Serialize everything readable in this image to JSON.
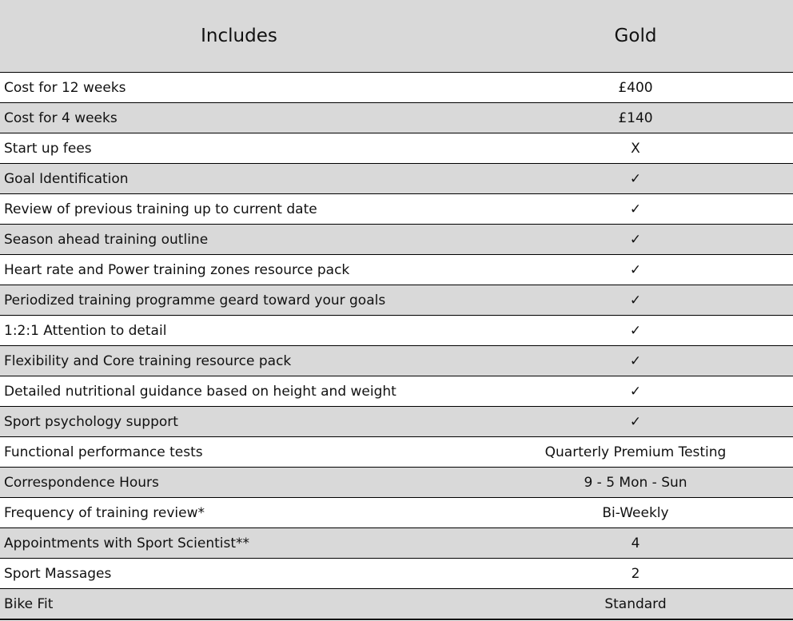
{
  "header": {
    "col1": "Includes",
    "col2": "Gold"
  },
  "rows": [
    {
      "label": "Cost for 12 weeks",
      "value": "£400"
    },
    {
      "label": "Cost for 4 weeks",
      "value": "£140"
    },
    {
      "label": "Start up fees",
      "value": "X"
    },
    {
      "label": "Goal Identification",
      "value": "✓"
    },
    {
      "label": "Review of previous training up to current date",
      "value": "✓"
    },
    {
      "label": "Season ahead training outline",
      "value": "✓"
    },
    {
      "label": "Heart rate and Power training zones resource pack",
      "value": "✓"
    },
    {
      "label": "Periodized training programme geard toward your goals",
      "value": "✓"
    },
    {
      "label": "1:2:1 Attention to detail",
      "value": "✓"
    },
    {
      "label": "Flexibility and Core training resource pack",
      "value": "✓"
    },
    {
      "label": "Detailed nutritional guidance based on height and weight",
      "value": "✓"
    },
    {
      "label": "Sport psychology support",
      "value": "✓"
    },
    {
      "label": "Functional performance tests",
      "value": "Quarterly Premium Testing"
    },
    {
      "label": "Correspondence Hours",
      "value": "9 - 5 Mon - Sun"
    },
    {
      "label": "Frequency of training review*",
      "value": "Bi-Weekly"
    },
    {
      "label": "Appointments with Sport Scientist**",
      "value": "4"
    },
    {
      "label": "Sport Massages",
      "value": "2"
    },
    {
      "label": "Bike Fit",
      "value": "Standard"
    }
  ],
  "colors": {
    "shaded": "#d9d9d9",
    "white": "#ffffff",
    "border": "#000000"
  }
}
